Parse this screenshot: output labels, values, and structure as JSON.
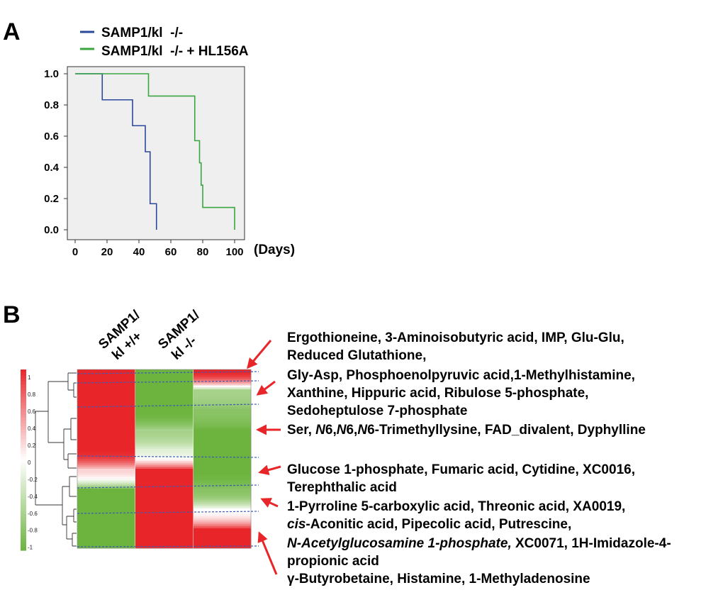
{
  "panels": {
    "a": {
      "letter": "A",
      "legend": [
        {
          "label": "SAMP1/kl  -/-",
          "color": "#2b4a9c"
        },
        {
          "label": "SAMP1/kl  -/- + HL156A",
          "color": "#3aa640"
        }
      ]
    },
    "b": {
      "letter": "B",
      "column_labels": [
        {
          "line1": "SAMP1/",
          "line2": "kl +/+"
        },
        {
          "line1": "SAMP1/",
          "line2": "kl -/-"
        }
      ],
      "colorbar_ticks": [
        "1",
        "0.8",
        "0.6",
        "0.4",
        "0.2",
        "0",
        "-0.2",
        "-0.4",
        "-0.6",
        "-0.8",
        "-1"
      ],
      "metabolite_groups": [
        {
          "segments": [
            {
              "t": "Ergothioneine, 3-Aminoisobutyric acid, IMP, Glu-Glu,",
              "i": false
            }
          ]
        },
        {
          "segments": [
            {
              "t": "Reduced Glutathione,",
              "i": false
            }
          ]
        },
        {
          "segments": [
            {
              "t": "Gly-Asp, Phosphoenolpyruvic acid,1-Methylhistamine,",
              "i": false
            }
          ]
        },
        {
          "segments": [
            {
              "t": "Xanthine, Hippuric acid, Ribulose 5-phosphate,",
              "i": false
            }
          ]
        },
        {
          "segments": [
            {
              "t": "Sedoheptulose 7-phosphate",
              "i": false
            }
          ]
        },
        {
          "segments": [
            {
              "t": "Ser, ",
              "i": false
            },
            {
              "t": "N",
              "i": true
            },
            {
              "t": "6,",
              "i": false
            },
            {
              "t": "N",
              "i": true
            },
            {
              "t": "6,",
              "i": false
            },
            {
              "t": "N",
              "i": true
            },
            {
              "t": "6-Trimethyllysine, FAD_divalent, Dyphylline",
              "i": false
            }
          ]
        },
        {
          "segments": [
            {
              "t": "Glucose 1-phosphate, Fumaric acid, Cytidine, XC0016,",
              "i": false
            }
          ]
        },
        {
          "segments": [
            {
              "t": "Terephthalic acid",
              "i": false
            }
          ]
        },
        {
          "segments": [
            {
              "t": "1-Pyrroline 5-carboxylic acid, Threonic acid, XA0019,",
              "i": false
            }
          ]
        },
        {
          "segments": [
            {
              "t": "cis",
              "i": true
            },
            {
              "t": "-Aconitic acid, Pipecolic acid, Putrescine,",
              "i": false
            }
          ]
        },
        {
          "segments": [
            {
              "t": "N-Acetylglucosamine 1-phosphate,",
              "i": true
            },
            {
              "t": " XC0071, 1H-Imidazole-4-",
              "i": false
            }
          ]
        },
        {
          "segments": [
            {
              "t": "propionic acid",
              "i": false
            }
          ]
        },
        {
          "segments": [
            {
              "t": "γ-Butyrobetaine, Histamine, 1-Methyladenosine",
              "i": false
            }
          ]
        }
      ]
    }
  },
  "colors": {
    "heat_high": "#e8262a",
    "heat_mid": "#ffffff",
    "heat_low": "#6cb43e",
    "arrow": "#e8262a",
    "plot_bg": "#efefef",
    "cluster_line": "#3b5bb5"
  },
  "chart_data": [
    {
      "type": "line",
      "step": true,
      "xlim": [
        0,
        100
      ],
      "ylim": [
        0.0,
        1.0
      ],
      "xticks": [
        "0",
        "20",
        "40",
        "60",
        "80",
        "100"
      ],
      "yticks": [
        "1.0",
        "0.8",
        "0.6",
        "0.4",
        "0.2",
        "0.0"
      ],
      "xlabel": "(Days)",
      "ylabel": "",
      "grid": false,
      "legend_position": "top",
      "series": [
        {
          "name": "SAMP1/kl  -/-",
          "x": [
            0,
            17,
            36,
            44,
            47,
            51
          ],
          "y": [
            1.0,
            0.833,
            0.667,
            0.5,
            0.167,
            0.0
          ]
        },
        {
          "name": "SAMP1/kl  -/- + HL156A",
          "x": [
            0,
            46,
            75,
            78,
            79,
            80,
            100
          ],
          "y": [
            1.0,
            0.857,
            0.571,
            0.429,
            0.286,
            0.143,
            0.0
          ]
        }
      ]
    },
    {
      "type": "heatmap",
      "columns": [
        "SAMP1/ kl +/+",
        "SAMP1/ kl -/-"
      ],
      "colorbar_range": [
        -1,
        1
      ],
      "rows_top_to_bottom": [
        {
          "kl_pp": 1.0,
          "kl_mm": -1.0,
          "hl156a": 1.0
        },
        {
          "kl_pp": 1.0,
          "kl_mm": -1.0,
          "hl156a": -0.6
        },
        {
          "kl_pp": 1.0,
          "kl_mm": -1.0,
          "hl156a": -0.8
        },
        {
          "kl_pp": 1.0,
          "kl_mm": -0.6,
          "hl156a": -1.0
        },
        {
          "kl_pp": 1.0,
          "kl_mm": -0.2,
          "hl156a": -1.0
        },
        {
          "kl_pp": 0.2,
          "kl_mm": 1.0,
          "hl156a": -1.0
        },
        {
          "kl_pp": -1.0,
          "kl_mm": 1.0,
          "hl156a": -0.8
        },
        {
          "kl_pp": -1.0,
          "kl_mm": 1.0,
          "hl156a": 0.0
        },
        {
          "kl_pp": -1.0,
          "kl_mm": 1.0,
          "hl156a": 1.0
        }
      ]
    }
  ]
}
